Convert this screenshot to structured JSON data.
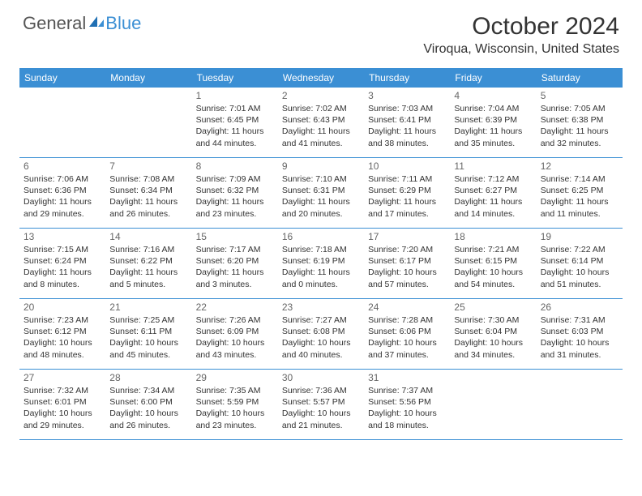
{
  "logo": {
    "word1": "General",
    "word2": "Blue"
  },
  "title": "October 2024",
  "location": "Viroqua, Wisconsin, United States",
  "colors": {
    "header_bg": "#3b8fd4",
    "header_text": "#ffffff",
    "row_border": "#3b8fd4",
    "body_text": "#333333",
    "day_num": "#666666",
    "logo_gray": "#555555",
    "logo_blue": "#3b8fd4",
    "background": "#ffffff"
  },
  "fonts": {
    "title_size": 30,
    "location_size": 16,
    "weekday_size": 12,
    "daynum_size": 12,
    "body_size": 10.5
  },
  "weekdays": [
    "Sunday",
    "Monday",
    "Tuesday",
    "Wednesday",
    "Thursday",
    "Friday",
    "Saturday"
  ],
  "weeks": [
    [
      null,
      null,
      {
        "n": "1",
        "sunrise": "Sunrise: 7:01 AM",
        "sunset": "Sunset: 6:45 PM",
        "day1": "Daylight: 11 hours",
        "day2": "and 44 minutes."
      },
      {
        "n": "2",
        "sunrise": "Sunrise: 7:02 AM",
        "sunset": "Sunset: 6:43 PM",
        "day1": "Daylight: 11 hours",
        "day2": "and 41 minutes."
      },
      {
        "n": "3",
        "sunrise": "Sunrise: 7:03 AM",
        "sunset": "Sunset: 6:41 PM",
        "day1": "Daylight: 11 hours",
        "day2": "and 38 minutes."
      },
      {
        "n": "4",
        "sunrise": "Sunrise: 7:04 AM",
        "sunset": "Sunset: 6:39 PM",
        "day1": "Daylight: 11 hours",
        "day2": "and 35 minutes."
      },
      {
        "n": "5",
        "sunrise": "Sunrise: 7:05 AM",
        "sunset": "Sunset: 6:38 PM",
        "day1": "Daylight: 11 hours",
        "day2": "and 32 minutes."
      }
    ],
    [
      {
        "n": "6",
        "sunrise": "Sunrise: 7:06 AM",
        "sunset": "Sunset: 6:36 PM",
        "day1": "Daylight: 11 hours",
        "day2": "and 29 minutes."
      },
      {
        "n": "7",
        "sunrise": "Sunrise: 7:08 AM",
        "sunset": "Sunset: 6:34 PM",
        "day1": "Daylight: 11 hours",
        "day2": "and 26 minutes."
      },
      {
        "n": "8",
        "sunrise": "Sunrise: 7:09 AM",
        "sunset": "Sunset: 6:32 PM",
        "day1": "Daylight: 11 hours",
        "day2": "and 23 minutes."
      },
      {
        "n": "9",
        "sunrise": "Sunrise: 7:10 AM",
        "sunset": "Sunset: 6:31 PM",
        "day1": "Daylight: 11 hours",
        "day2": "and 20 minutes."
      },
      {
        "n": "10",
        "sunrise": "Sunrise: 7:11 AM",
        "sunset": "Sunset: 6:29 PM",
        "day1": "Daylight: 11 hours",
        "day2": "and 17 minutes."
      },
      {
        "n": "11",
        "sunrise": "Sunrise: 7:12 AM",
        "sunset": "Sunset: 6:27 PM",
        "day1": "Daylight: 11 hours",
        "day2": "and 14 minutes."
      },
      {
        "n": "12",
        "sunrise": "Sunrise: 7:14 AM",
        "sunset": "Sunset: 6:25 PM",
        "day1": "Daylight: 11 hours",
        "day2": "and 11 minutes."
      }
    ],
    [
      {
        "n": "13",
        "sunrise": "Sunrise: 7:15 AM",
        "sunset": "Sunset: 6:24 PM",
        "day1": "Daylight: 11 hours",
        "day2": "and 8 minutes."
      },
      {
        "n": "14",
        "sunrise": "Sunrise: 7:16 AM",
        "sunset": "Sunset: 6:22 PM",
        "day1": "Daylight: 11 hours",
        "day2": "and 5 minutes."
      },
      {
        "n": "15",
        "sunrise": "Sunrise: 7:17 AM",
        "sunset": "Sunset: 6:20 PM",
        "day1": "Daylight: 11 hours",
        "day2": "and 3 minutes."
      },
      {
        "n": "16",
        "sunrise": "Sunrise: 7:18 AM",
        "sunset": "Sunset: 6:19 PM",
        "day1": "Daylight: 11 hours",
        "day2": "and 0 minutes."
      },
      {
        "n": "17",
        "sunrise": "Sunrise: 7:20 AM",
        "sunset": "Sunset: 6:17 PM",
        "day1": "Daylight: 10 hours",
        "day2": "and 57 minutes."
      },
      {
        "n": "18",
        "sunrise": "Sunrise: 7:21 AM",
        "sunset": "Sunset: 6:15 PM",
        "day1": "Daylight: 10 hours",
        "day2": "and 54 minutes."
      },
      {
        "n": "19",
        "sunrise": "Sunrise: 7:22 AM",
        "sunset": "Sunset: 6:14 PM",
        "day1": "Daylight: 10 hours",
        "day2": "and 51 minutes."
      }
    ],
    [
      {
        "n": "20",
        "sunrise": "Sunrise: 7:23 AM",
        "sunset": "Sunset: 6:12 PM",
        "day1": "Daylight: 10 hours",
        "day2": "and 48 minutes."
      },
      {
        "n": "21",
        "sunrise": "Sunrise: 7:25 AM",
        "sunset": "Sunset: 6:11 PM",
        "day1": "Daylight: 10 hours",
        "day2": "and 45 minutes."
      },
      {
        "n": "22",
        "sunrise": "Sunrise: 7:26 AM",
        "sunset": "Sunset: 6:09 PM",
        "day1": "Daylight: 10 hours",
        "day2": "and 43 minutes."
      },
      {
        "n": "23",
        "sunrise": "Sunrise: 7:27 AM",
        "sunset": "Sunset: 6:08 PM",
        "day1": "Daylight: 10 hours",
        "day2": "and 40 minutes."
      },
      {
        "n": "24",
        "sunrise": "Sunrise: 7:28 AM",
        "sunset": "Sunset: 6:06 PM",
        "day1": "Daylight: 10 hours",
        "day2": "and 37 minutes."
      },
      {
        "n": "25",
        "sunrise": "Sunrise: 7:30 AM",
        "sunset": "Sunset: 6:04 PM",
        "day1": "Daylight: 10 hours",
        "day2": "and 34 minutes."
      },
      {
        "n": "26",
        "sunrise": "Sunrise: 7:31 AM",
        "sunset": "Sunset: 6:03 PM",
        "day1": "Daylight: 10 hours",
        "day2": "and 31 minutes."
      }
    ],
    [
      {
        "n": "27",
        "sunrise": "Sunrise: 7:32 AM",
        "sunset": "Sunset: 6:01 PM",
        "day1": "Daylight: 10 hours",
        "day2": "and 29 minutes."
      },
      {
        "n": "28",
        "sunrise": "Sunrise: 7:34 AM",
        "sunset": "Sunset: 6:00 PM",
        "day1": "Daylight: 10 hours",
        "day2": "and 26 minutes."
      },
      {
        "n": "29",
        "sunrise": "Sunrise: 7:35 AM",
        "sunset": "Sunset: 5:59 PM",
        "day1": "Daylight: 10 hours",
        "day2": "and 23 minutes."
      },
      {
        "n": "30",
        "sunrise": "Sunrise: 7:36 AM",
        "sunset": "Sunset: 5:57 PM",
        "day1": "Daylight: 10 hours",
        "day2": "and 21 minutes."
      },
      {
        "n": "31",
        "sunrise": "Sunrise: 7:37 AM",
        "sunset": "Sunset: 5:56 PM",
        "day1": "Daylight: 10 hours",
        "day2": "and 18 minutes."
      },
      null,
      null
    ]
  ]
}
